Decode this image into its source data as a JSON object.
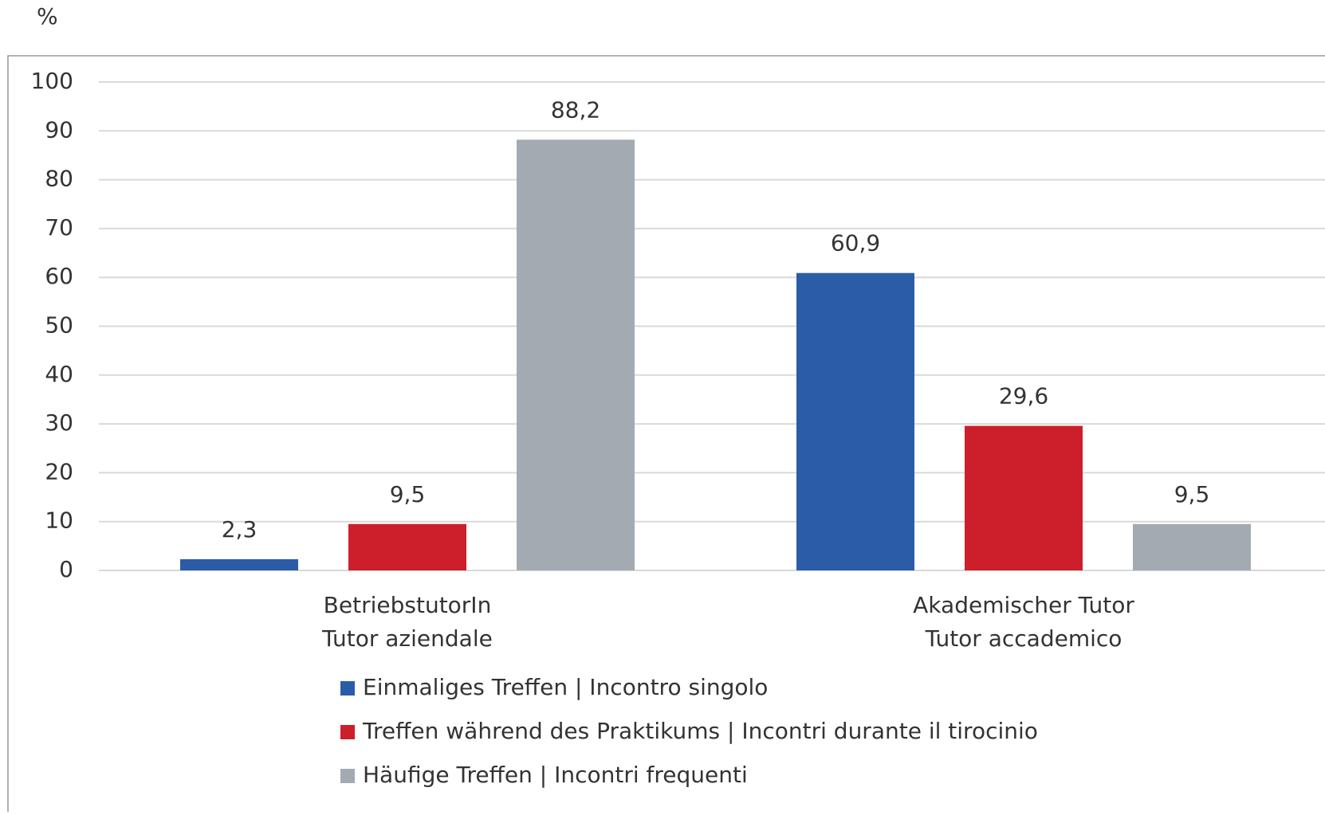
{
  "chart_data": {
    "type": "bar",
    "y_axis_label": "%",
    "categories": [
      [
        "BetriebstutorIn",
        "Tutor aziendale"
      ],
      [
        "Akademischer Tutor",
        "Tutor accademico"
      ]
    ],
    "series": [
      {
        "name": "Einmaliges Treffen | Incontro singolo",
        "color": "#2b5ca8",
        "values": [
          2.3,
          60.9
        ],
        "value_labels": [
          "2,3",
          "60,9"
        ]
      },
      {
        "name": "Treffen während des Praktikums | Incontri durante il tirocinio",
        "color": "#cc1f2b",
        "values": [
          9.5,
          29.6
        ],
        "value_labels": [
          "9,5",
          "29,6"
        ]
      },
      {
        "name": "Häufige Treffen | Incontri frequenti",
        "color": "#a3aab2",
        "values": [
          88.2,
          9.5
        ],
        "value_labels": [
          "88,2",
          "9,5"
        ]
      }
    ],
    "ylim": [
      0,
      100
    ],
    "yticks": [
      0,
      10,
      20,
      30,
      40,
      50,
      60,
      70,
      80,
      90,
      100
    ],
    "grid": true,
    "legend": "bottom"
  }
}
